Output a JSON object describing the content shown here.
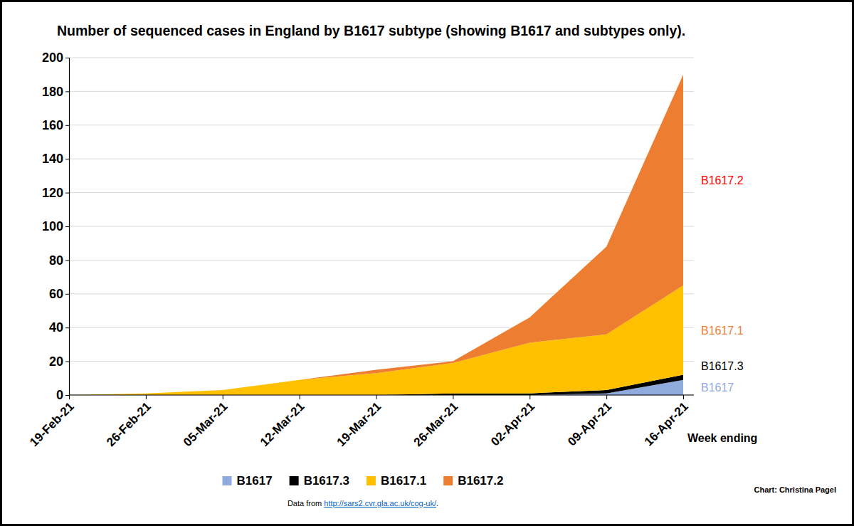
{
  "chart_data": {
    "type": "area",
    "stacked": true,
    "title": "Number of sequenced cases in England by B1617 subtype (showing B1617 and subtypes only).",
    "x_label": "Week ending",
    "categories": [
      "19-Feb-21",
      "26-Feb-21",
      "05-Mar-21",
      "12-Mar-21",
      "19-Mar-21",
      "26-Mar-21",
      "02-Apr-21",
      "09-Apr-21",
      "16-Apr-21"
    ],
    "series": [
      {
        "name": "B1617",
        "color": "#8faadc",
        "values": [
          0,
          0,
          0,
          0,
          0,
          0,
          0,
          1,
          9
        ]
      },
      {
        "name": "B1617.3",
        "color": "#000000",
        "values": [
          0,
          0,
          0,
          0,
          0,
          1,
          1,
          2,
          3
        ]
      },
      {
        "name": "B1617.1",
        "color": "#ffc000",
        "values": [
          0,
          1,
          3,
          9,
          13,
          18,
          30,
          33,
          53
        ]
      },
      {
        "name": "B1617.2",
        "color": "#ed7d31",
        "values": [
          0,
          0,
          0,
          0,
          2,
          1,
          15,
          52,
          125
        ]
      }
    ],
    "ylim": [
      0,
      200
    ],
    "yticks": [
      0,
      20,
      40,
      60,
      80,
      100,
      120,
      140,
      160,
      180,
      200
    ],
    "grid": true,
    "legend": "bottom",
    "annotations": [
      {
        "text": "B1617.2",
        "color": "#ff0000"
      },
      {
        "text": "B1617.1",
        "color": "#ed7d31"
      },
      {
        "text": "B1617.3",
        "color": "#000000"
      },
      {
        "text": "B1617",
        "color": "#8faadc"
      }
    ],
    "source": {
      "text": "Data from ",
      "link": "http://sars2.cvr.gla.ac.uk/cog-uk/",
      "suffix": "."
    },
    "credit": "Chart: Christina Pagel"
  }
}
